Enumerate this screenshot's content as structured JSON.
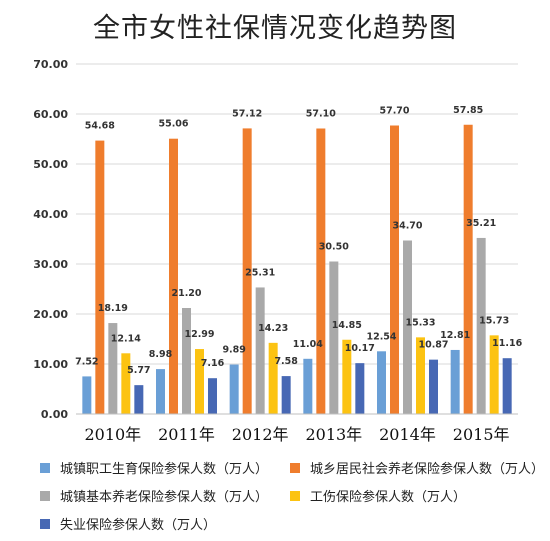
{
  "chart_data": {
    "type": "bar",
    "title": "全市女性社保情况变化趋势图",
    "categories": [
      "2010年",
      "2011年",
      "2012年",
      "2013年",
      "2014年",
      "2015年"
    ],
    "ylim": [
      0,
      70
    ],
    "yticks": [
      "0.00",
      "10.00",
      "20.00",
      "30.00",
      "40.00",
      "50.00",
      "60.00",
      "70.00"
    ],
    "grid": true,
    "legend_position": "bottom",
    "series": [
      {
        "name": "城镇职工生育保险参保人数（万人）",
        "color": "#6a9fd6",
        "values": [
          7.52,
          8.98,
          9.89,
          11.04,
          12.54,
          12.81
        ],
        "labels": [
          "7.52",
          "8.98",
          "9.89",
          "11.04",
          "12.54",
          "12.81"
        ]
      },
      {
        "name": "城乡居民社会养老保险参保人数（万人）",
        "color": "#ef7d2d",
        "values": [
          54.68,
          55.06,
          57.12,
          57.1,
          57.7,
          57.85
        ],
        "labels": [
          "54.68",
          "55.06",
          "57.12",
          "57.10",
          "57.70",
          "57.85"
        ]
      },
      {
        "name": "城镇基本养老保险参保人数（万人）",
        "color": "#a9a9a9",
        "values": [
          18.19,
          21.2,
          25.31,
          30.5,
          34.7,
          35.21
        ],
        "labels": [
          "18.19",
          "21.20",
          "25.31",
          "30.50",
          "34.70",
          "35.21"
        ]
      },
      {
        "name": "工伤保险参保人数（万人）",
        "color": "#fcc312",
        "values": [
          12.14,
          12.99,
          14.23,
          14.85,
          15.33,
          15.73
        ],
        "labels": [
          "12.14",
          "12.99",
          "14.23",
          "14.85",
          "15.33",
          "15.73"
        ]
      },
      {
        "name": "失业保险参保人数（万人）",
        "color": "#4768b4",
        "values": [
          5.77,
          7.16,
          7.58,
          10.17,
          10.87,
          11.16
        ],
        "labels": [
          "5.77",
          "7.16",
          "7.58",
          "10.17",
          "10.87",
          "11.16"
        ]
      }
    ]
  }
}
